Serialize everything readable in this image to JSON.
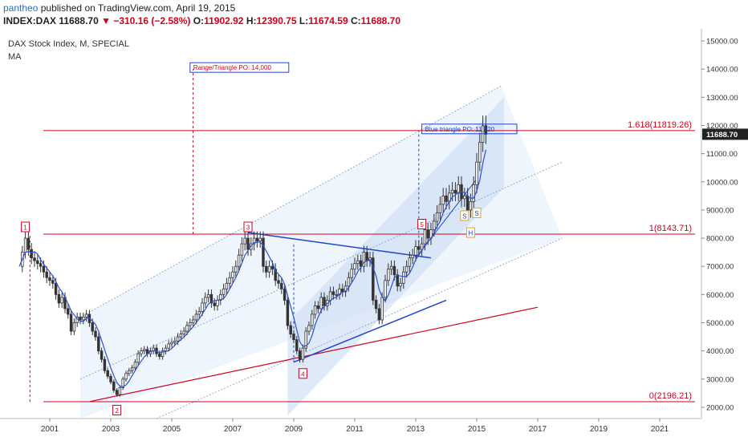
{
  "header": {
    "author": "pantheo",
    "published_text": "published on TradingView.com, April 19, 2015",
    "symbol": "INDEX:DAX",
    "last": "11688.70",
    "change": "−310.16 (−2.58%)",
    "open_label": "O:",
    "open": "11902.92",
    "high_label": "H:",
    "high": "12390.75",
    "low_label": "L:",
    "low": "11674.59",
    "close_label": "C:",
    "close": "11688.70"
  },
  "chart_data": {
    "type": "candlestick",
    "title": "DAX Stock Index, M, SPECIAL",
    "indicator": "MA",
    "ylim": [
      1600,
      15200
    ],
    "xlim": [
      2000.0,
      2022.0
    ],
    "y_ticks": [
      "2000.00",
      "3000.00",
      "4000.00",
      "5000.00",
      "6000.00",
      "7000.00",
      "8000.00",
      "9000.00",
      "10000.00",
      "11000.00",
      "12000.00",
      "13000.00",
      "14000.00",
      "15000.00"
    ],
    "x_ticks": [
      "2001",
      "2003",
      "2005",
      "2007",
      "2009",
      "2011",
      "2013",
      "2015",
      "2017",
      "2019",
      "2021"
    ],
    "last_price_label": "11688.70",
    "fib_levels": [
      {
        "label": "1.618(11819.26)",
        "value": 11819.26
      },
      {
        "label": "1(8143.71)",
        "value": 8143.71
      },
      {
        "label": "0(2196.21)",
        "value": 2196.21
      }
    ],
    "annotations": [
      {
        "text": "Range/Triangle PO: 14,000",
        "x": 2005.6,
        "y": 14000
      },
      {
        "text": "Blue triangle PO: 11,820",
        "x": 2013.2,
        "y": 11820
      }
    ],
    "pivots": [
      {
        "label": "1",
        "x": 2000.2,
        "y": 8400
      },
      {
        "label": "2",
        "x": 2003.2,
        "y": 1900
      },
      {
        "label": "3",
        "x": 2007.5,
        "y": 8400
      },
      {
        "label": "4",
        "x": 2009.3,
        "y": 3200
      },
      {
        "label": "5",
        "x": 2013.2,
        "y": 8500
      },
      {
        "label": "S",
        "x": 2014.6,
        "y": 8800
      },
      {
        "label": "S",
        "x": 2015.0,
        "y": 8900
      },
      {
        "label": "H",
        "x": 2014.8,
        "y": 8200
      }
    ],
    "closes": [
      [
        2000.0,
        7000
      ],
      [
        2000.1,
        7500
      ],
      [
        2000.2,
        8000
      ],
      [
        2000.3,
        7600
      ],
      [
        2000.4,
        7300
      ],
      [
        2000.5,
        7200
      ],
      [
        2000.6,
        7100
      ],
      [
        2000.7,
        7000
      ],
      [
        2000.8,
        6800
      ],
      [
        2000.9,
        6600
      ],
      [
        2001.0,
        6500
      ],
      [
        2001.1,
        6400
      ],
      [
        2001.2,
        6000
      ],
      [
        2001.3,
        5700
      ],
      [
        2001.4,
        5900
      ],
      [
        2001.5,
        5500
      ],
      [
        2001.6,
        5300
      ],
      [
        2001.7,
        4700
      ],
      [
        2001.8,
        5000
      ],
      [
        2001.9,
        5200
      ],
      [
        2002.0,
        5100
      ],
      [
        2002.1,
        5200
      ],
      [
        2002.2,
        5300
      ],
      [
        2002.3,
        5000
      ],
      [
        2002.4,
        4700
      ],
      [
        2002.5,
        4500
      ],
      [
        2002.6,
        4000
      ],
      [
        2002.7,
        3700
      ],
      [
        2002.8,
        3300
      ],
      [
        2002.9,
        3100
      ],
      [
        2003.0,
        2900
      ],
      [
        2003.1,
        2600
      ],
      [
        2003.2,
        2450
      ],
      [
        2003.3,
        2700
      ],
      [
        2003.4,
        3000
      ],
      [
        2003.5,
        3200
      ],
      [
        2003.6,
        3300
      ],
      [
        2003.7,
        3400
      ],
      [
        2003.8,
        3600
      ],
      [
        2003.9,
        3900
      ],
      [
        2004.0,
        4000
      ],
      [
        2004.1,
        4050
      ],
      [
        2004.2,
        3900
      ],
      [
        2004.3,
        4000
      ],
      [
        2004.4,
        4100
      ],
      [
        2004.5,
        3900
      ],
      [
        2004.6,
        3800
      ],
      [
        2004.7,
        4000
      ],
      [
        2004.8,
        4100
      ],
      [
        2004.9,
        4250
      ],
      [
        2005.0,
        4300
      ],
      [
        2005.1,
        4350
      ],
      [
        2005.2,
        4500
      ],
      [
        2005.3,
        4600
      ],
      [
        2005.4,
        4700
      ],
      [
        2005.5,
        4900
      ],
      [
        2005.6,
        5000
      ],
      [
        2005.7,
        5100
      ],
      [
        2005.8,
        5300
      ],
      [
        2005.9,
        5400
      ],
      [
        2006.0,
        5700
      ],
      [
        2006.1,
        5900
      ],
      [
        2006.2,
        6000
      ],
      [
        2006.3,
        5700
      ],
      [
        2006.4,
        5600
      ],
      [
        2006.5,
        5800
      ],
      [
        2006.6,
        6000
      ],
      [
        2006.7,
        6200
      ],
      [
        2006.8,
        6400
      ],
      [
        2006.9,
        6600
      ],
      [
        2007.0,
        6800
      ],
      [
        2007.1,
        7000
      ],
      [
        2007.2,
        7400
      ],
      [
        2007.3,
        7800
      ],
      [
        2007.4,
        8000
      ],
      [
        2007.5,
        7600
      ],
      [
        2007.6,
        7800
      ],
      [
        2007.7,
        8000
      ],
      [
        2007.8,
        7900
      ],
      [
        2007.9,
        8000
      ],
      [
        2008.0,
        7000
      ],
      [
        2008.1,
        6800
      ],
      [
        2008.2,
        7000
      ],
      [
        2008.3,
        6900
      ],
      [
        2008.4,
        6500
      ],
      [
        2008.5,
        6400
      ],
      [
        2008.6,
        6200
      ],
      [
        2008.7,
        5800
      ],
      [
        2008.8,
        4900
      ],
      [
        2008.9,
        4600
      ],
      [
        2009.0,
        4400
      ],
      [
        2009.1,
        4000
      ],
      [
        2009.2,
        3700
      ],
      [
        2009.3,
        4100
      ],
      [
        2009.4,
        4700
      ],
      [
        2009.5,
        4900
      ],
      [
        2009.6,
        5300
      ],
      [
        2009.7,
        5600
      ],
      [
        2009.8,
        5500
      ],
      [
        2009.9,
        5900
      ],
      [
        2010.0,
        5600
      ],
      [
        2010.1,
        5800
      ],
      [
        2010.2,
        6100
      ],
      [
        2010.3,
        6000
      ],
      [
        2010.4,
        6000
      ],
      [
        2010.5,
        6200
      ],
      [
        2010.6,
        6100
      ],
      [
        2010.7,
        6300
      ],
      [
        2010.8,
        6600
      ],
      [
        2010.9,
        6900
      ],
      [
        2011.0,
        7100
      ],
      [
        2011.1,
        7200
      ],
      [
        2011.2,
        7000
      ],
      [
        2011.3,
        7500
      ],
      [
        2011.4,
        7200
      ],
      [
        2011.5,
        7300
      ],
      [
        2011.6,
        5800
      ],
      [
        2011.7,
        5500
      ],
      [
        2011.8,
        5100
      ],
      [
        2011.9,
        5900
      ],
      [
        2012.0,
        6500
      ],
      [
        2012.1,
        6900
      ],
      [
        2012.2,
        7000
      ],
      [
        2012.3,
        6700
      ],
      [
        2012.4,
        6300
      ],
      [
        2012.5,
        6400
      ],
      [
        2012.6,
        6800
      ],
      [
        2012.7,
        7000
      ],
      [
        2012.8,
        7300
      ],
      [
        2012.9,
        7400
      ],
      [
        2013.0,
        7700
      ],
      [
        2013.1,
        7600
      ],
      [
        2013.2,
        7800
      ],
      [
        2013.3,
        8300
      ],
      [
        2013.4,
        8000
      ],
      [
        2013.5,
        8300
      ],
      [
        2013.6,
        8600
      ],
      [
        2013.7,
        8900
      ],
      [
        2013.8,
        9200
      ],
      [
        2013.9,
        9500
      ],
      [
        2014.0,
        9300
      ],
      [
        2014.1,
        9600
      ],
      [
        2014.2,
        9700
      ],
      [
        2014.3,
        9600
      ],
      [
        2014.4,
        9900
      ],
      [
        2014.5,
        9400
      ],
      [
        2014.6,
        9500
      ],
      [
        2014.7,
        9000
      ],
      [
        2014.8,
        9300
      ],
      [
        2014.9,
        9900
      ],
      [
        2015.0,
        10700
      ],
      [
        2015.1,
        11400
      ],
      [
        2015.2,
        11990
      ],
      [
        2015.3,
        11690
      ]
    ]
  }
}
